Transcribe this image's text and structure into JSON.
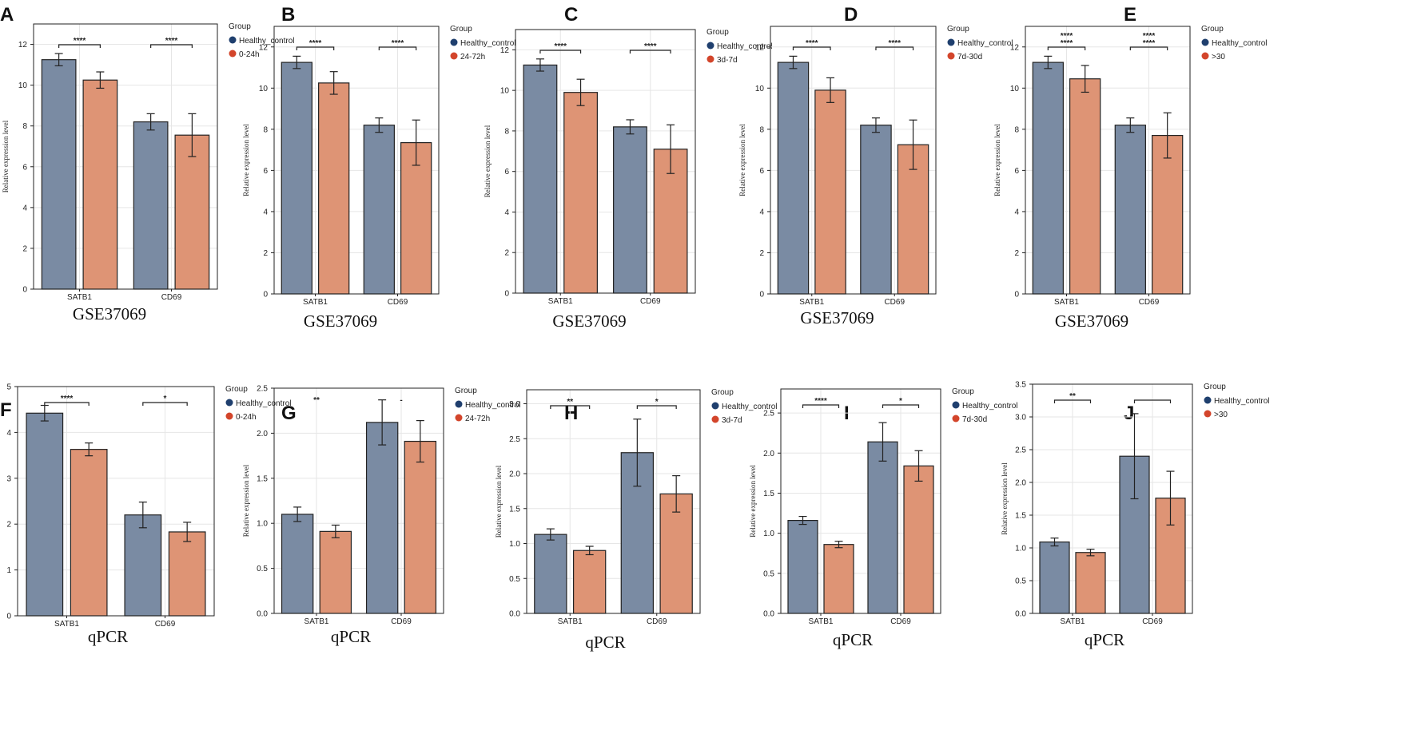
{
  "colors": {
    "control": "#7a8ba3",
    "disease": "#de9475",
    "legend_control": "#1f3f6e",
    "legend_disease": "#d3452b"
  },
  "legend_title": "Group",
  "control_label": "Healthy_control",
  "ylabel": "Relative expression level",
  "categories": [
    "SATB1",
    "CD69"
  ],
  "chart_data": [
    {
      "type": "bar",
      "letter": "A",
      "caption": "GSE37069",
      "disease_label": "0-24h",
      "ylim": [
        0,
        13
      ],
      "yticks": [
        "0",
        "2",
        "4",
        "6",
        "8",
        "10",
        "12"
      ],
      "ytick_values": [
        0,
        2,
        4,
        6,
        8,
        10,
        12
      ],
      "series": [
        {
          "name": "Healthy_control",
          "values": [
            11.25,
            8.2
          ],
          "errors": [
            0.3,
            0.4
          ]
        },
        {
          "name": "0-24h",
          "values": [
            10.25,
            7.55
          ],
          "errors": [
            0.4,
            1.05
          ]
        }
      ],
      "sig": [
        "****",
        "****"
      ]
    },
    {
      "type": "bar",
      "letter": "B",
      "caption": "GSE37069",
      "disease_label": "24-72h",
      "ylim": [
        0,
        13
      ],
      "yticks": [
        "0",
        "2",
        "4",
        "6",
        "8",
        "10",
        "12"
      ],
      "ytick_values": [
        0,
        2,
        4,
        6,
        8,
        10,
        12
      ],
      "series": [
        {
          "name": "Healthy_control",
          "values": [
            11.25,
            8.2
          ],
          "errors": [
            0.3,
            0.35
          ]
        },
        {
          "name": "24-72h",
          "values": [
            10.25,
            7.35
          ],
          "errors": [
            0.55,
            1.1
          ]
        }
      ],
      "sig": [
        "****",
        "****"
      ]
    },
    {
      "type": "bar",
      "letter": "C",
      "caption": "GSE37069",
      "disease_label": "3d-7d",
      "ylim": [
        0,
        13
      ],
      "yticks": [
        "0",
        "2",
        "4",
        "6",
        "8",
        "10",
        "12"
      ],
      "ytick_values": [
        0,
        2,
        4,
        6,
        8,
        10,
        12
      ],
      "series": [
        {
          "name": "Healthy_control",
          "values": [
            11.25,
            8.2
          ],
          "errors": [
            0.3,
            0.35
          ]
        },
        {
          "name": "3d-7d",
          "values": [
            9.9,
            7.1
          ],
          "errors": [
            0.65,
            1.2
          ]
        }
      ],
      "sig": [
        "****",
        "****"
      ]
    },
    {
      "type": "bar",
      "letter": "D",
      "caption": "GSE37069",
      "disease_label": "7d-30d",
      "ylim": [
        0,
        13
      ],
      "yticks": [
        "0",
        "2",
        "4",
        "6",
        "8",
        "10",
        "12"
      ],
      "ytick_values": [
        0,
        2,
        4,
        6,
        8,
        10,
        12
      ],
      "series": [
        {
          "name": "Healthy_control",
          "values": [
            11.25,
            8.2
          ],
          "errors": [
            0.3,
            0.35
          ]
        },
        {
          "name": "7d-30d",
          "values": [
            9.9,
            7.25
          ],
          "errors": [
            0.6,
            1.2
          ]
        }
      ],
      "sig": [
        "****",
        "****"
      ]
    },
    {
      "type": "bar",
      "letter": "E",
      "caption": "GSE37069",
      "disease_label": ">30",
      "ylim": [
        0,
        13
      ],
      "yticks": [
        "0",
        "2",
        "4",
        "6",
        "8",
        "10",
        "12"
      ],
      "ytick_values": [
        0,
        2,
        4,
        6,
        8,
        10,
        12
      ],
      "series": [
        {
          "name": "Healthy_control",
          "values": [
            11.25,
            8.2
          ],
          "errors": [
            0.3,
            0.35
          ]
        },
        {
          "name": ">30",
          "values": [
            10.45,
            7.7
          ],
          "errors": [
            0.65,
            1.1
          ]
        }
      ],
      "sig": [
        "****",
        "****"
      ],
      "sig_extra": [
        "****",
        "****"
      ]
    },
    {
      "type": "bar",
      "letter": "F",
      "caption": "qPCR",
      "disease_label": "0-24h",
      "ylim": [
        0,
        5
      ],
      "yticks": [
        "0",
        "1",
        "2",
        "3",
        "4",
        "5"
      ],
      "ytick_values": [
        0,
        1,
        2,
        3,
        4,
        5
      ],
      "series": [
        {
          "name": "Healthy_control",
          "values": [
            4.42,
            2.2
          ],
          "errors": [
            0.17,
            0.28
          ]
        },
        {
          "name": "0-24h",
          "values": [
            3.63,
            1.83
          ],
          "errors": [
            0.14,
            0.21
          ]
        }
      ],
      "sig": [
        "****",
        "*"
      ]
    },
    {
      "type": "bar",
      "letter": "G",
      "caption": "qPCR",
      "disease_label": "24-72h",
      "ylim": [
        0,
        2.5
      ],
      "yticks": [
        "0.0",
        "0.5",
        "1.0",
        "1.5",
        "2.0",
        "2.5"
      ],
      "ytick_values": [
        0,
        0.5,
        1,
        1.5,
        2,
        2.5
      ],
      "series": [
        {
          "name": "Healthy_control",
          "values": [
            1.1,
            2.12
          ],
          "errors": [
            0.08,
            0.25
          ]
        },
        {
          "name": "24-72h",
          "values": [
            0.91,
            1.91
          ],
          "errors": [
            0.07,
            0.23
          ]
        }
      ],
      "sig": [
        "**",
        "-"
      ],
      "sig_nobracket": true
    },
    {
      "type": "bar",
      "letter": "H",
      "caption": "qPCR",
      "disease_label": "3d-7d",
      "ylim": [
        0,
        3.2
      ],
      "yticks": [
        "0.0",
        "0.5",
        "1.0",
        "1.5",
        "2.0",
        "2.5",
        "3.0"
      ],
      "ytick_values": [
        0,
        0.5,
        1,
        1.5,
        2,
        2.5,
        3
      ],
      "series": [
        {
          "name": "Healthy_control",
          "values": [
            1.13,
            2.3
          ],
          "errors": [
            0.08,
            0.48
          ]
        },
        {
          "name": "3d-7d",
          "values": [
            0.9,
            1.71
          ],
          "errors": [
            0.06,
            0.26
          ]
        }
      ],
      "sig": [
        "**",
        "*"
      ]
    },
    {
      "type": "bar",
      "letter": "I",
      "caption": "qPCR",
      "disease_label": "7d-30d",
      "ylim": [
        0,
        2.8
      ],
      "yticks": [
        "0.0",
        "0.5",
        "1.0",
        "1.5",
        "2.0",
        "2.5"
      ],
      "ytick_values": [
        0,
        0.5,
        1,
        1.5,
        2,
        2.5
      ],
      "series": [
        {
          "name": "Healthy_control",
          "values": [
            1.16,
            2.14
          ],
          "errors": [
            0.05,
            0.24
          ]
        },
        {
          "name": "7d-30d",
          "values": [
            0.86,
            1.84
          ],
          "errors": [
            0.04,
            0.19
          ]
        }
      ],
      "sig": [
        "****",
        "*"
      ]
    },
    {
      "type": "bar",
      "letter": "J",
      "caption": "qPCR",
      "disease_label": ">30",
      "ylim": [
        0,
        3.5
      ],
      "yticks": [
        "0.0",
        "0.5",
        "1.0",
        "1.5",
        "2.0",
        "2.5",
        "3.0",
        "3.5"
      ],
      "ytick_values": [
        0,
        0.5,
        1,
        1.5,
        2,
        2.5,
        3,
        3.5
      ],
      "series": [
        {
          "name": "Healthy_control",
          "values": [
            1.09,
            2.4
          ],
          "errors": [
            0.06,
            0.65
          ]
        },
        {
          "name": ">30",
          "values": [
            0.93,
            1.76
          ],
          "errors": [
            0.05,
            0.41
          ]
        }
      ],
      "sig": [
        "**",
        ""
      ]
    }
  ]
}
